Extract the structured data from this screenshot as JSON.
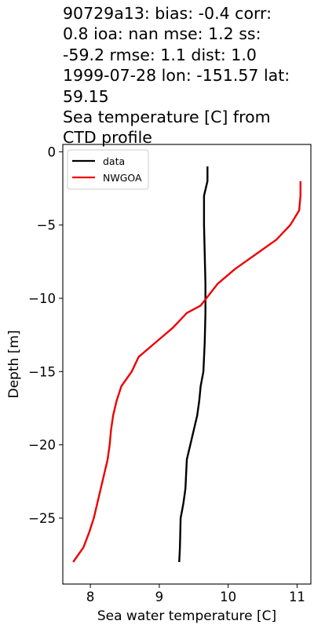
{
  "title_lines": [
    "90729a13: bias: -0.4  corr:",
    "0.8  ioa: nan  mse: 1.2  ss:",
    "-59.2  rmse: 1.1  dist: 1.0",
    "1999-07-28 lon: -151.57 lat:",
    "59.15",
    "Sea temperature [C] from",
    "CTD profile"
  ],
  "chart_data": {
    "type": "line",
    "xlabel": "Sea water temperature [C]",
    "ylabel": "Depth [m]",
    "xlim": [
      7.6,
      11.2
    ],
    "ylim": [
      -29.5,
      0.5
    ],
    "xticks": [
      8,
      9,
      10,
      11
    ],
    "yticks": [
      0,
      -5,
      -10,
      -15,
      -20,
      -25
    ],
    "grid": false,
    "legend_position": "top-left",
    "series": [
      {
        "name": "data",
        "color": "#000000",
        "points": [
          [
            9.7,
            -1.0
          ],
          [
            9.7,
            -2.0
          ],
          [
            9.65,
            -3.0
          ],
          [
            9.65,
            -5.0
          ],
          [
            9.66,
            -7.0
          ],
          [
            9.67,
            -9.0
          ],
          [
            9.67,
            -11.0
          ],
          [
            9.66,
            -13.0
          ],
          [
            9.64,
            -15.0
          ],
          [
            9.6,
            -16.0
          ],
          [
            9.58,
            -17.0
          ],
          [
            9.55,
            -18.0
          ],
          [
            9.5,
            -19.0
          ],
          [
            9.45,
            -20.0
          ],
          [
            9.4,
            -21.0
          ],
          [
            9.38,
            -23.0
          ],
          [
            9.35,
            -24.0
          ],
          [
            9.31,
            -25.0
          ],
          [
            9.3,
            -27.0
          ],
          [
            9.29,
            -28.0
          ]
        ]
      },
      {
        "name": "NWGOA",
        "color": "#ee0000",
        "points": [
          [
            11.05,
            -2.0
          ],
          [
            11.05,
            -3.0
          ],
          [
            11.03,
            -4.0
          ],
          [
            10.9,
            -5.0
          ],
          [
            10.7,
            -6.0
          ],
          [
            10.4,
            -7.0
          ],
          [
            10.1,
            -8.0
          ],
          [
            9.85,
            -9.0
          ],
          [
            9.6,
            -10.5
          ],
          [
            9.4,
            -11.0
          ],
          [
            9.2,
            -12.0
          ],
          [
            8.95,
            -13.0
          ],
          [
            8.7,
            -14.0
          ],
          [
            8.6,
            -15.0
          ],
          [
            8.45,
            -16.0
          ],
          [
            8.38,
            -17.0
          ],
          [
            8.33,
            -18.0
          ],
          [
            8.3,
            -19.0
          ],
          [
            8.28,
            -20.0
          ],
          [
            8.25,
            -21.0
          ],
          [
            8.2,
            -22.0
          ],
          [
            8.15,
            -23.0
          ],
          [
            8.1,
            -24.0
          ],
          [
            8.05,
            -25.0
          ],
          [
            7.98,
            -26.0
          ],
          [
            7.9,
            -27.0
          ],
          [
            7.75,
            -28.0
          ]
        ]
      }
    ]
  }
}
